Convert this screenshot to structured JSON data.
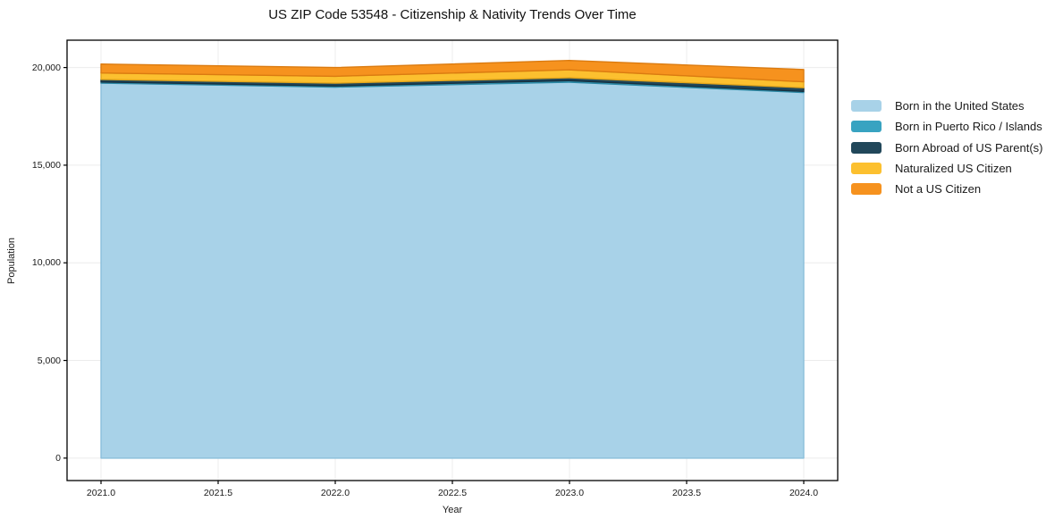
{
  "chart_data": {
    "type": "area",
    "stacked": true,
    "title": "US ZIP Code 53548 - Citizenship & Nativity Trends Over Time",
    "xlabel": "Year",
    "ylabel": "Population",
    "x": [
      2021,
      2022,
      2023,
      2024
    ],
    "series": [
      {
        "name": "Born in the United States",
        "color": "#a8d2e8",
        "edge": "#8abfdb",
        "values": [
          19200,
          19000,
          19250,
          18720
        ]
      },
      {
        "name": "Born in Puerto Rico / Islands",
        "color": "#38a3c1",
        "edge": "#2b89a5",
        "values": [
          60,
          60,
          80,
          60
        ]
      },
      {
        "name": "Born Abroad of US Parent(s)",
        "color": "#21475a",
        "edge": "#16303f",
        "values": [
          130,
          140,
          150,
          185
        ]
      },
      {
        "name": "Naturalized US Citizen",
        "color": "#fcc02f",
        "edge": "#e3a61c",
        "values": [
          330,
          350,
          400,
          305
        ]
      },
      {
        "name": "Not a US Citizen",
        "color": "#f6921e",
        "edge": "#db7b10",
        "values": [
          460,
          450,
          480,
          630
        ]
      }
    ],
    "xlim": [
      2020.855,
      2024.145
    ],
    "ylim": [
      -1150,
      21400
    ],
    "xticks": {
      "values": [
        2021,
        2021.5,
        2022,
        2022.5,
        2023,
        2023.5,
        2024
      ],
      "labels": [
        "2021.0",
        "2021.5",
        "2022.0",
        "2022.5",
        "2023.0",
        "2023.5",
        "2024.0"
      ]
    },
    "yticks": {
      "values": [
        0,
        5000,
        10000,
        15000,
        20000
      ],
      "labels": [
        "0",
        "5,000",
        "10,000",
        "15,000",
        "20,000"
      ]
    },
    "grid": true,
    "legend_position": "right",
    "colors": {
      "grid": "#ececec",
      "spine": "#000000",
      "text": "#1a1a1a",
      "background": "#ffffff"
    }
  }
}
